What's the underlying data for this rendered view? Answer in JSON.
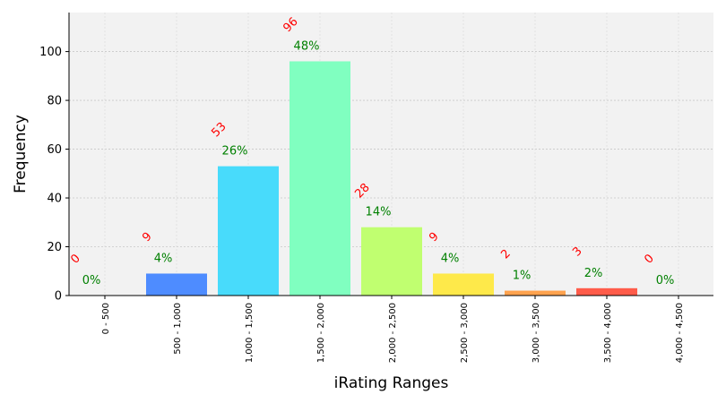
{
  "chart_data": {
    "type": "bar",
    "title": "",
    "xlabel": "iRating Ranges",
    "ylabel": "Frequency",
    "ylim": [
      0,
      116
    ],
    "yticks": [
      0,
      20,
      40,
      60,
      80,
      100
    ],
    "grid": true,
    "categories": [
      "0 - 500",
      "500 - 1,000",
      "1,000 - 1,500",
      "1,500 - 2,000",
      "2,000 - 2,500",
      "2,500 - 3,000",
      "3,000 - 3,500",
      "3,500 - 4,000",
      "4,000 - 4,500"
    ],
    "values": [
      0,
      9,
      53,
      96,
      28,
      9,
      2,
      3,
      0
    ],
    "count_labels": [
      "0",
      "9",
      "53",
      "96",
      "28",
      "9",
      "2",
      "3",
      "0"
    ],
    "percent_labels": [
      "0%",
      "4%",
      "26%",
      "48%",
      "14%",
      "4%",
      "1%",
      "2%",
      "0%"
    ],
    "colors": [
      "#7f00ff",
      "#4e8cff",
      "#48dbfb",
      "#80ffc0",
      "#c0ff70",
      "#fee94a",
      "#ffa24e",
      "#ff5c4a",
      "#ff0000"
    ],
    "count_label_color": "#ff0000",
    "percent_label_color": "#008000",
    "plot_background": "#f2f2f2"
  }
}
